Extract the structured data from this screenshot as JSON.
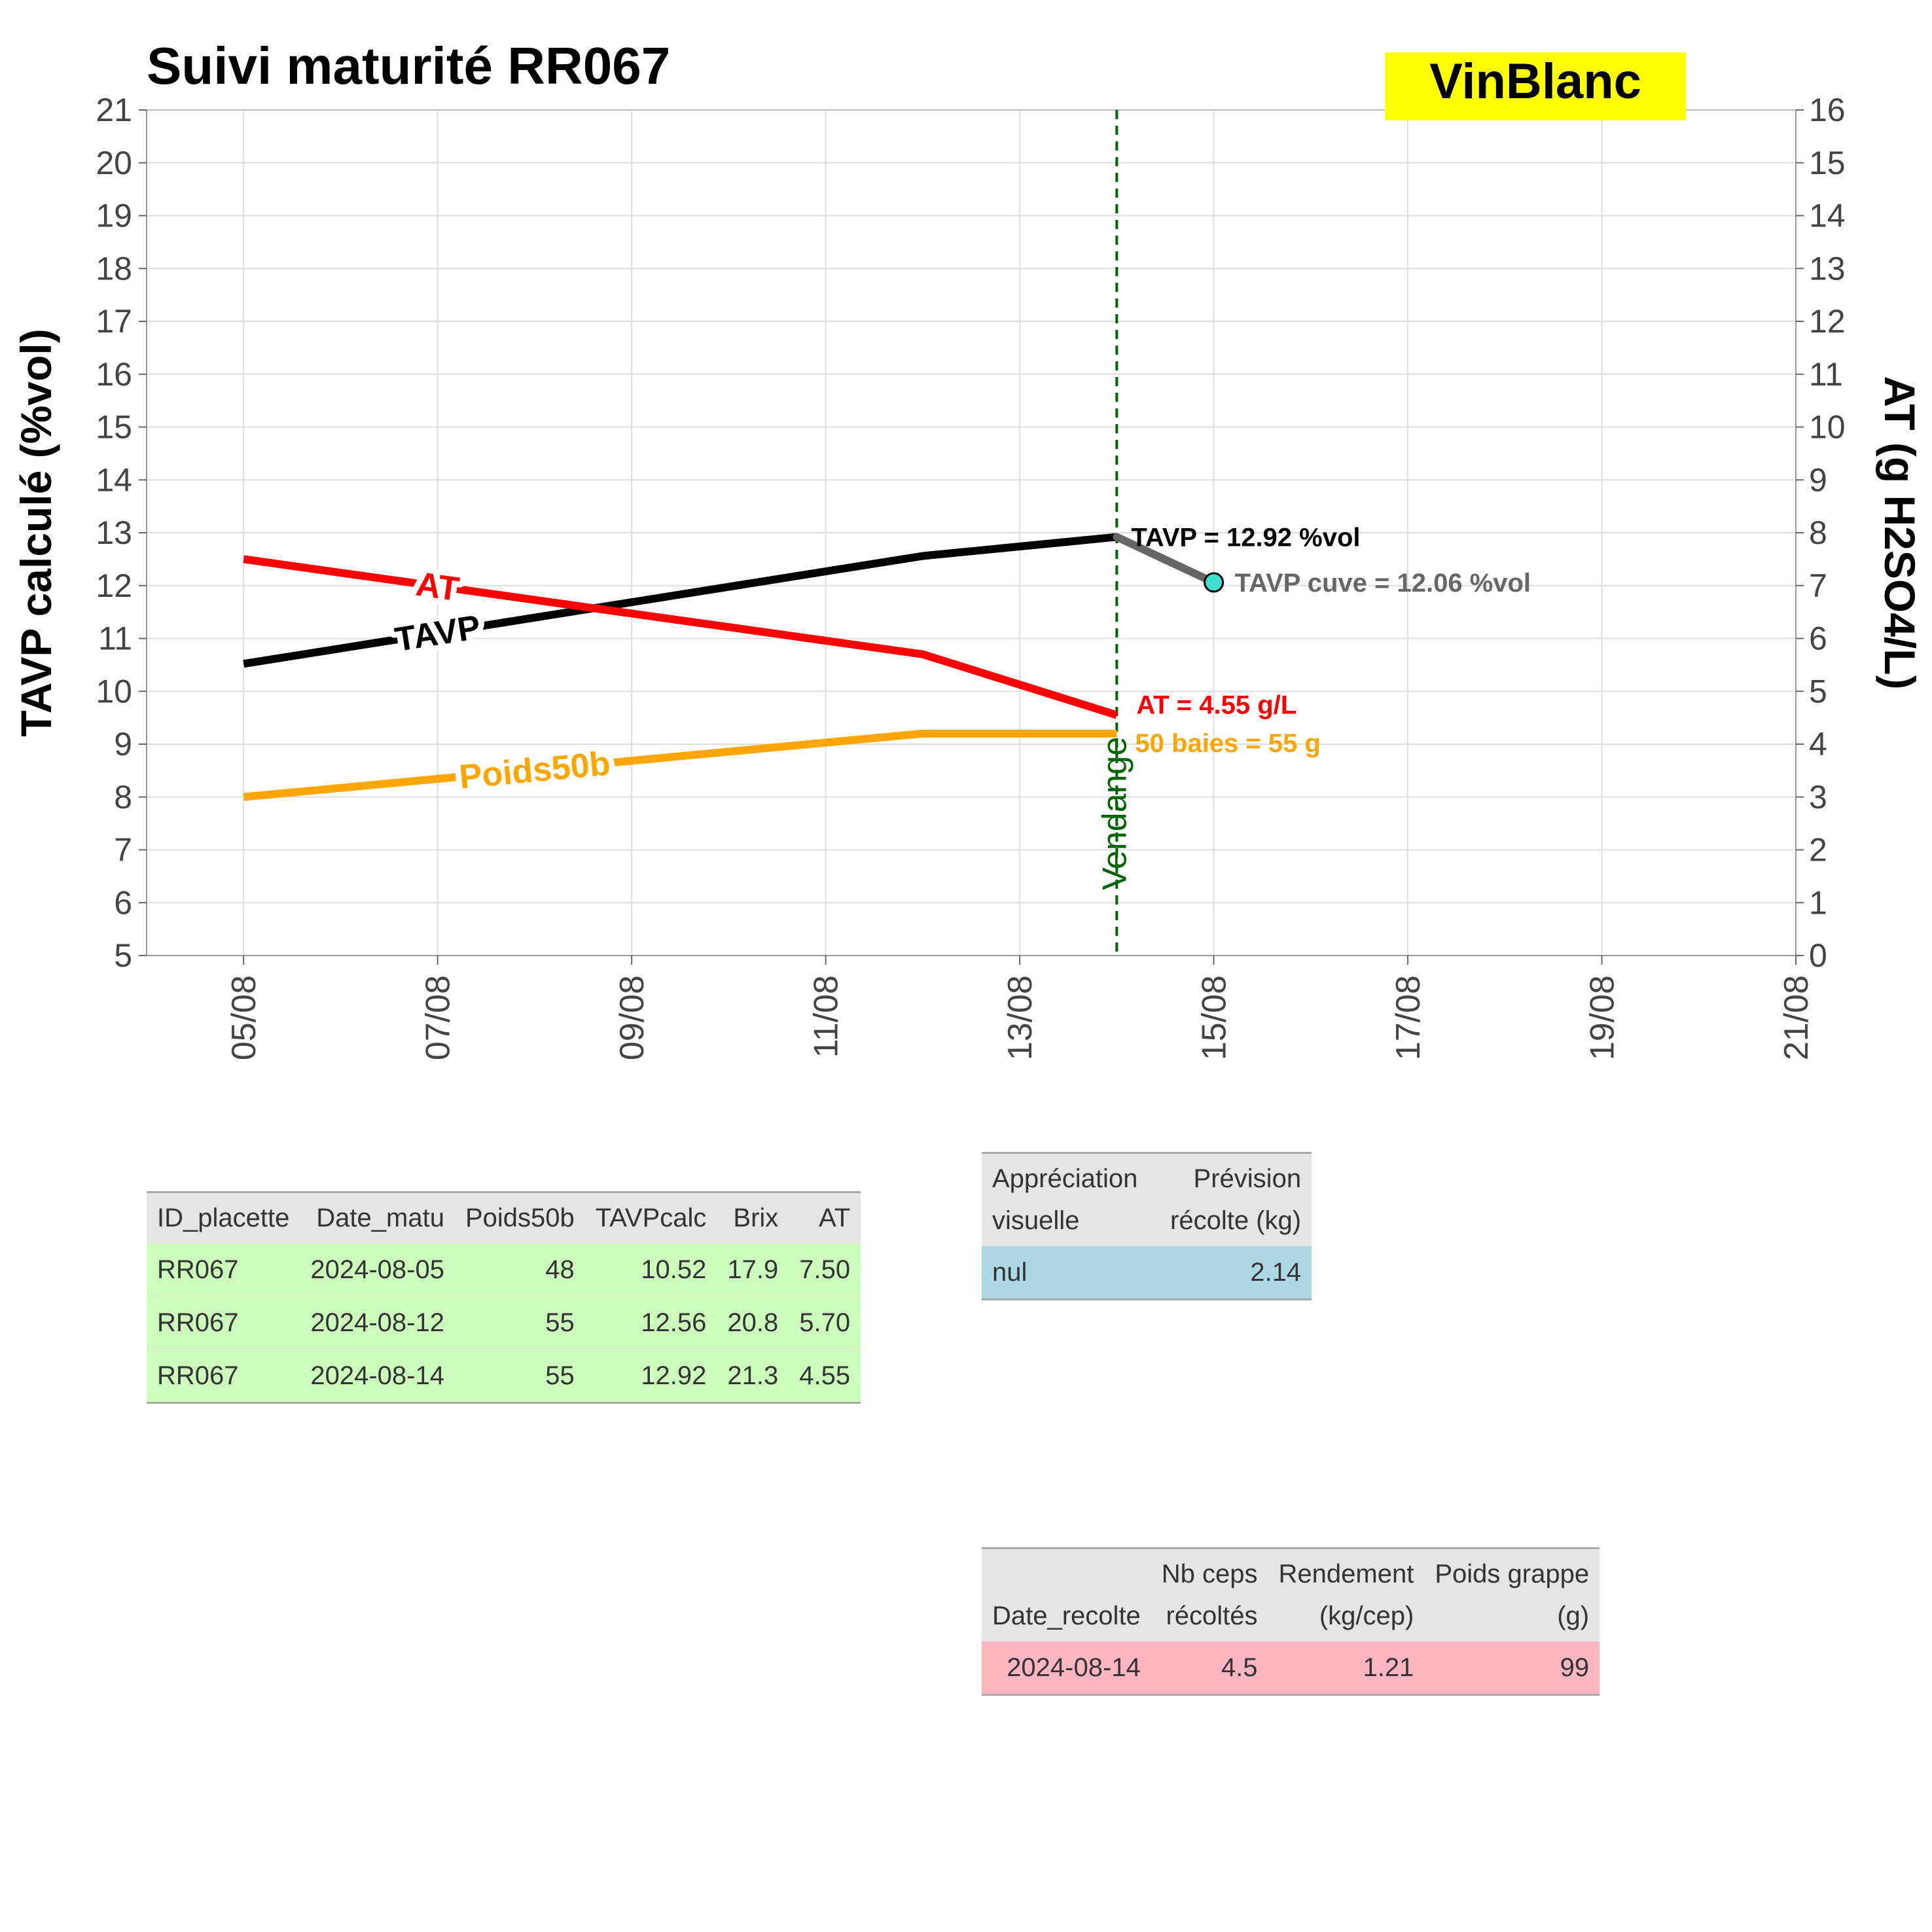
{
  "chart_data": {
    "type": "line",
    "title": "Suivi maturité  RR067",
    "badge": {
      "text": "VinBlanc",
      "color": "#ffff00"
    },
    "ylabel": "TAVP calculé (%vol)",
    "y2label": "AT (g H2SO4/L)",
    "xlabel": "",
    "ylim": [
      5,
      21
    ],
    "y2lim": [
      0,
      16
    ],
    "yticks": [
      5,
      6,
      7,
      8,
      9,
      10,
      11,
      12,
      13,
      14,
      15,
      16,
      17,
      18,
      19,
      20,
      21
    ],
    "y2ticks": [
      0,
      1,
      2,
      3,
      4,
      5,
      6,
      7,
      8,
      9,
      10,
      11,
      12,
      13,
      14,
      15,
      16
    ],
    "xlim": [
      "2024-08-04",
      "2024-08-21"
    ],
    "xticks": [
      {
        "date": "2024-08-05",
        "label": "05/08"
      },
      {
        "date": "2024-08-07",
        "label": "07/08"
      },
      {
        "date": "2024-08-09",
        "label": "09/08"
      },
      {
        "date": "2024-08-11",
        "label": "11/08"
      },
      {
        "date": "2024-08-13",
        "label": "13/08"
      },
      {
        "date": "2024-08-15",
        "label": "15/08"
      },
      {
        "date": "2024-08-17",
        "label": "17/08"
      },
      {
        "date": "2024-08-19",
        "label": "19/08"
      },
      {
        "date": "2024-08-21",
        "label": "21/08"
      }
    ],
    "grid": true,
    "series": [
      {
        "name": "TAVP",
        "axis": "left",
        "color": "#000000",
        "x": [
          "2024-08-05",
          "2024-08-12",
          "2024-08-14"
        ],
        "y": [
          10.52,
          12.56,
          12.92
        ]
      },
      {
        "name": "AT",
        "axis": "right",
        "color": "#ff0000",
        "x": [
          "2024-08-05",
          "2024-08-12",
          "2024-08-14"
        ],
        "y": [
          7.5,
          5.7,
          4.55
        ]
      },
      {
        "name": "Poids50b",
        "axis": "left",
        "color": "#ffa500",
        "x": [
          "2024-08-05",
          "2024-08-12",
          "2024-08-14"
        ],
        "y": [
          8.0,
          9.2,
          9.2
        ]
      }
    ],
    "cuve": {
      "color": "#666666",
      "marker_color": "#40e0d0",
      "x": [
        "2024-08-14",
        "2024-08-15"
      ],
      "y": [
        12.92,
        12.06
      ]
    },
    "vendange": {
      "date": "2024-08-14",
      "label": "Vendange",
      "color": "#006400"
    },
    "annotations": {
      "tavp_end": "TAVP = 12.92 %vol",
      "cuve": "TAVP cuve = 12.06 %vol",
      "at_end": "AT = 4.55 g/L",
      "poids_end": "50 baies = 55 g"
    }
  },
  "maturite_table": {
    "columns": [
      "ID_placette",
      "Date_matu",
      "Poids50b",
      "TAVPcalc",
      "Brix",
      "AT"
    ],
    "rows": [
      [
        "RR067",
        "2024-08-05",
        "48",
        "10.52",
        "17.9",
        "7.50"
      ],
      [
        "RR067",
        "2024-08-12",
        "55",
        "12.56",
        "20.8",
        "5.70"
      ],
      [
        "RR067",
        "2024-08-14",
        "55",
        "12.92",
        "21.3",
        "4.55"
      ]
    ]
  },
  "appreciation_table": {
    "col1": [
      "Appréciation",
      "visuelle"
    ],
    "col2": [
      "Prévision",
      "récolte (kg)"
    ],
    "row": [
      "nul",
      "2.14"
    ]
  },
  "recolte_table": {
    "col1": [
      "",
      "Date_recolte"
    ],
    "col2": [
      "Nb ceps",
      "récoltés"
    ],
    "col3": [
      "Rendement",
      "(kg/cep)"
    ],
    "col4": [
      "Poids grappe",
      "(g)"
    ],
    "row": [
      "2024-08-14",
      "4.5",
      "1.21",
      "99"
    ]
  }
}
